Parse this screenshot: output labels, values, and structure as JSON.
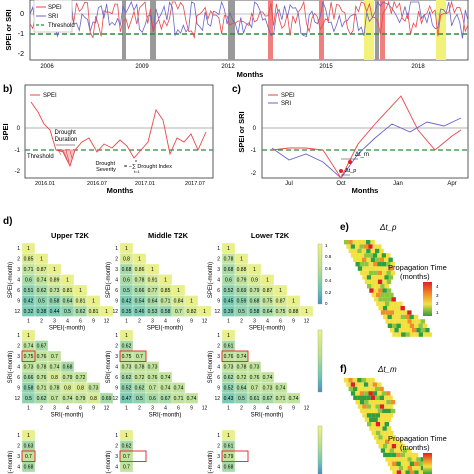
{
  "panel_a": {
    "ylabel": "SPEI or SRI",
    "xlabel": "Months",
    "xticks": [
      "2006",
      "2009",
      "2012",
      "2015",
      "2018"
    ],
    "yticks": [
      "0",
      "-1",
      "-2"
    ],
    "legend": [
      "SPEI",
      "SRI",
      "Threshold"
    ]
  },
  "panel_b": {
    "tag": "b)",
    "ylabel": "SPEI",
    "xlabel": "Months",
    "xticks": [
      "2016.01",
      "2016.07",
      "2017.01",
      "2017.07"
    ],
    "yticks": [
      "0",
      "-1",
      "-2"
    ],
    "legend": [
      "SPEI"
    ],
    "annot_duration": "Drought\nDuration",
    "annot_threshold": "Threshold",
    "annot_severity_left": "Drought\nSeverity",
    "annot_severity_eq": "= −∑ Drought Index",
    "annot_severity_sub": "t=1",
    "annot_severity_sup": "n"
  },
  "panel_c": {
    "tag": "c)",
    "ylabel": "SPEI or SRI",
    "xlabel": "Months",
    "xticks": [
      "Jul",
      "Oct",
      "Jan",
      "Apr"
    ],
    "yticks": [
      "0",
      "-1",
      "-2"
    ],
    "legend": [
      "SPEI",
      "SRI"
    ],
    "annot_tm": "Δt_m",
    "annot_tp": "Δt_p"
  },
  "panel_d": {
    "tag": "d)",
    "col_titles": [
      "Upper T2K",
      "Middle T2K",
      "Lower T2K"
    ],
    "row_xlabels": [
      "SPEI(-month)",
      "SRI(-month)"
    ],
    "row_ylabels": [
      "SPEI(-month)",
      "SRI(-month)"
    ],
    "ticks": [
      "1",
      "2",
      "3",
      "4",
      "6",
      "9",
      "12"
    ],
    "colorbar_ticks": [
      "1",
      "0.8",
      "0.6",
      "0.4",
      "0.2",
      "0"
    ],
    "upper_spei": [
      [
        "1"
      ],
      [
        "0.85",
        "1"
      ],
      [
        "0.71",
        "0.87",
        "1"
      ],
      [
        "0.6",
        "0.74",
        "0.89",
        "1"
      ],
      [
        "0.51",
        "0.62",
        "0.73",
        "0.81",
        "1"
      ],
      [
        "0.42",
        "0.5",
        "0.58",
        "0.64",
        "0.81",
        "1"
      ],
      [
        "0.32",
        "0.38",
        "0.44",
        "0.5",
        "0.62",
        "0.81",
        "1"
      ]
    ],
    "middle_spei": [
      [
        "1"
      ],
      [
        "0.8",
        "1"
      ],
      [
        "0.68",
        "0.86",
        "1"
      ],
      [
        "0.6",
        "0.78",
        "0.91",
        "1"
      ],
      [
        "0.5",
        "0.66",
        "0.77",
        "0.85",
        "1"
      ],
      [
        "0.42",
        "0.54",
        "0.64",
        "0.71",
        "0.84",
        "1"
      ],
      [
        "0.35",
        "0.46",
        "0.53",
        "0.58",
        "0.7",
        "0.82",
        "1"
      ]
    ],
    "lower_spei": [
      [
        "1"
      ],
      [
        "0.78",
        "1"
      ],
      [
        "0.68",
        "0.88",
        "1"
      ],
      [
        "0.6",
        "0.79",
        "0.9",
        "1"
      ],
      [
        "0.52",
        "0.69",
        "0.79",
        "0.87",
        "1"
      ],
      [
        "0.45",
        "0.59",
        "0.68",
        "0.75",
        "0.87",
        "1"
      ],
      [
        "0.39",
        "0.5",
        "0.58",
        "0.64",
        "0.75",
        "0.88",
        "1"
      ]
    ],
    "upper_sri": [
      [
        "1"
      ],
      [
        "0.74",
        "0.67"
      ],
      [
        "0.75",
        "0.76",
        "0.7"
      ],
      [
        "0.73",
        "0.78",
        "0.74",
        "0.68"
      ],
      [
        "0.66",
        "0.76",
        "0.8",
        "0.79",
        "0.72"
      ],
      [
        "0.58",
        "0.71",
        "0.78",
        "0.8",
        "0.8",
        "0.73"
      ],
      [
        "0.5",
        "0.62",
        "0.7",
        "0.74",
        "0.79",
        "0.8",
        "0.69"
      ]
    ],
    "middle_sri": [
      [
        "1"
      ],
      [
        "0.62"
      ],
      [
        "0.75",
        "0.7"
      ],
      [
        "0.73",
        "0.78",
        "0.73"
      ],
      [
        "0.62",
        "0.72",
        "0.76",
        "0.74"
      ],
      [
        "0.52",
        "0.62",
        "0.7",
        "0.74",
        "0.74"
      ],
      [
        "0.47",
        "0.5",
        "0.6",
        "0.67",
        "0.71",
        "0.74"
      ]
    ],
    "lower_sri": [
      [
        "1"
      ],
      [
        "0.61"
      ],
      [
        "0.76",
        "0.74"
      ],
      [
        "0.73",
        "0.78",
        "0.73"
      ],
      [
        "0.62",
        "0.72",
        "0.76",
        "0.74"
      ],
      [
        "0.52",
        "0.64",
        "0.7",
        "0.73",
        "0.74"
      ],
      [
        "0.43",
        "0.5",
        "0.61",
        "0.67",
        "0.71",
        "0.74"
      ]
    ],
    "bottom_upper": [
      "1",
      "0.63",
      "0.7",
      "0.68"
    ],
    "bottom_middle": [
      "1",
      "0.62",
      "0.7",
      "0.7"
    ],
    "bottom_lower": [
      "1",
      "0.61",
      "0.79",
      "0.68"
    ]
  },
  "panel_e": {
    "tag": "e)",
    "symbol": "Δt_p",
    "legend_title": "Propagation Time",
    "legend_unit": "(months)",
    "legend_ticks": [
      "4",
      "3",
      "2",
      "1"
    ]
  },
  "panel_f": {
    "tag": "f)",
    "symbol": "Δt_m",
    "legend_title": "Propagation Time",
    "legend_unit": "(months)"
  },
  "colors": {
    "spei": "#e8474a",
    "sri": "#6b63c9",
    "threshold": "#2e8b3e",
    "gray_band": "#9a9a9a",
    "red_band": "#f08080",
    "yellow_band": "#f2f27a",
    "heat_high": "#e9ef8a",
    "heat_mid": "#c6e3a6",
    "heat_low": "#7dcfb1",
    "highlight": "#e02020"
  }
}
